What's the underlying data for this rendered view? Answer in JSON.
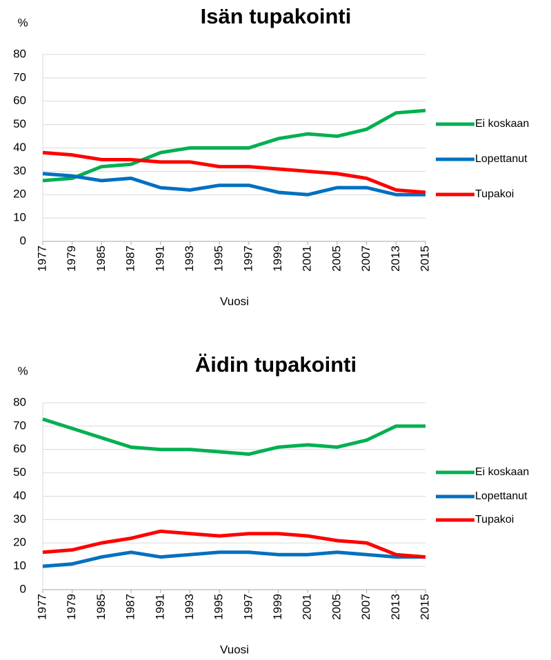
{
  "chart_data": [
    {
      "type": "line",
      "title": "Isän tupakointi",
      "y_label": "%",
      "x_label": "Vuosi",
      "categories": [
        "1977",
        "1979",
        "1985",
        "1987",
        "1991",
        "1993",
        "1995",
        "1997",
        "1999",
        "2001",
        "2005",
        "2007",
        "2013",
        "2015"
      ],
      "series": [
        {
          "name": "Ei koskaan",
          "color": "#00b050",
          "values": [
            26,
            27,
            32,
            33,
            38,
            40,
            40,
            40,
            44,
            46,
            45,
            48,
            55,
            56
          ]
        },
        {
          "name": "Lopettanut",
          "color": "#0070c0",
          "values": [
            29,
            28,
            26,
            27,
            23,
            22,
            24,
            24,
            21,
            20,
            23,
            23,
            20,
            20
          ]
        },
        {
          "name": "Tupakoi",
          "color": "#ff0000",
          "values": [
            38,
            37,
            35,
            35,
            34,
            34,
            32,
            32,
            31,
            30,
            29,
            27,
            22,
            21
          ]
        }
      ],
      "ylim": [
        0,
        80
      ],
      "yticks": [
        0,
        10,
        20,
        30,
        40,
        50,
        60,
        70,
        80
      ],
      "grid": true,
      "legend": "right"
    },
    {
      "type": "line",
      "title": "Äidin tupakointi",
      "y_label": "%",
      "x_label": "Vuosi",
      "categories": [
        "1977",
        "1979",
        "1985",
        "1987",
        "1991",
        "1993",
        "1995",
        "1997",
        "1999",
        "2001",
        "2005",
        "2007",
        "2013",
        "2015"
      ],
      "series": [
        {
          "name": "Ei koskaan",
          "color": "#00b050",
          "values": [
            73,
            69,
            65,
            61,
            60,
            60,
            59,
            58,
            61,
            62,
            61,
            64,
            70,
            70
          ]
        },
        {
          "name": "Lopettanut",
          "color": "#0070c0",
          "values": [
            10,
            11,
            14,
            16,
            14,
            15,
            16,
            16,
            15,
            15,
            16,
            15,
            14,
            14
          ]
        },
        {
          "name": "Tupakoi",
          "color": "#ff0000",
          "values": [
            16,
            17,
            20,
            22,
            25,
            24,
            23,
            24,
            24,
            23,
            21,
            20,
            15,
            14
          ]
        }
      ],
      "ylim": [
        0,
        80
      ],
      "yticks": [
        0,
        10,
        20,
        30,
        40,
        50,
        60,
        70,
        80
      ],
      "grid": true,
      "legend": "right"
    }
  ]
}
